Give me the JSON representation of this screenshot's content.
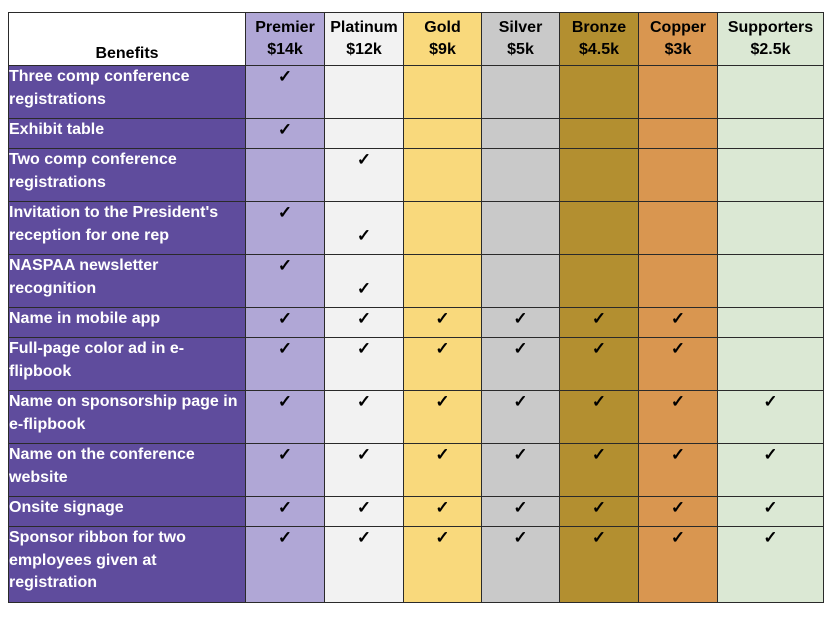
{
  "header": {
    "benefits": "Benefits",
    "tiers": [
      {
        "name": "Premier",
        "price": "$14k",
        "color": "#b0a7d6"
      },
      {
        "name": "Platinum",
        "price": "$12k",
        "color": "#f2f2f2"
      },
      {
        "name": "Gold",
        "price": "$9k",
        "color": "#f9d97c"
      },
      {
        "name": "Silver",
        "price": "$5k",
        "color": "#c9c9c9"
      },
      {
        "name": "Bronze",
        "price": "$4.5k",
        "color": "#b38f30"
      },
      {
        "name": "Copper",
        "price": "$3k",
        "color": "#d99650"
      },
      {
        "name": "Supporters",
        "price": "$2.5k",
        "color": "#dbe8d4"
      }
    ]
  },
  "check_mark": "✓",
  "rows": [
    {
      "benefit": "Three comp conference registrations",
      "checks": [
        true,
        false,
        false,
        false,
        false,
        false,
        false
      ]
    },
    {
      "benefit": "Exhibit table",
      "checks": [
        true,
        false,
        false,
        false,
        false,
        false,
        false
      ]
    },
    {
      "benefit": "Two comp conference registrations",
      "checks": [
        false,
        true,
        false,
        false,
        false,
        false,
        false
      ]
    },
    {
      "benefit": "Invitation to the President's reception for one rep",
      "checks": [
        true,
        true,
        false,
        false,
        false,
        false,
        false
      ]
    },
    {
      "benefit": "NASPAA newsletter recognition",
      "checks": [
        true,
        true,
        false,
        false,
        false,
        false,
        false
      ]
    },
    {
      "benefit": "Name in mobile app",
      "checks": [
        true,
        true,
        true,
        true,
        true,
        true,
        false
      ]
    },
    {
      "benefit": "Full-page color ad in e-flipbook",
      "checks": [
        true,
        true,
        true,
        true,
        true,
        true,
        false
      ]
    },
    {
      "benefit": "Name on sponsorship page in e-flipbook",
      "checks": [
        true,
        true,
        true,
        true,
        true,
        true,
        true
      ]
    },
    {
      "benefit": "Name on the conference website",
      "checks": [
        true,
        true,
        true,
        true,
        true,
        true,
        true
      ]
    },
    {
      "benefit": "Onsite signage",
      "checks": [
        true,
        true,
        true,
        true,
        true,
        true,
        true
      ]
    },
    {
      "benefit": "Sponsor ribbon for two employees given at registration",
      "checks": [
        true,
        true,
        true,
        true,
        true,
        true,
        true
      ]
    }
  ]
}
